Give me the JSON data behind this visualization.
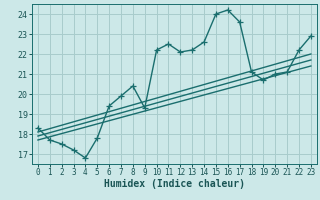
{
  "title": "",
  "xlabel": "Humidex (Indice chaleur)",
  "ylabel": "",
  "bg_color": "#cce8e8",
  "grid_color": "#a8cccc",
  "line_color": "#1a6e6e",
  "xlim": [
    -0.5,
    23.5
  ],
  "ylim": [
    16.5,
    24.5
  ],
  "xticks": [
    0,
    1,
    2,
    3,
    4,
    5,
    6,
    7,
    8,
    9,
    10,
    11,
    12,
    13,
    14,
    15,
    16,
    17,
    18,
    19,
    20,
    21,
    22,
    23
  ],
  "yticks": [
    17,
    18,
    19,
    20,
    21,
    22,
    23,
    24
  ],
  "main_line_x": [
    0,
    1,
    2,
    3,
    4,
    5,
    6,
    7,
    8,
    9,
    10,
    11,
    12,
    13,
    14,
    15,
    16,
    17,
    18,
    19,
    20,
    21,
    22,
    23
  ],
  "main_line_y": [
    18.3,
    17.7,
    17.5,
    17.2,
    16.8,
    17.8,
    19.4,
    19.9,
    20.4,
    19.3,
    22.2,
    22.5,
    22.1,
    22.2,
    22.6,
    24.0,
    24.2,
    23.6,
    21.1,
    20.7,
    21.0,
    21.1,
    22.2,
    22.9
  ],
  "line2_x": [
    0,
    23
  ],
  "line2_y": [
    18.1,
    22.0
  ],
  "line3_x": [
    0,
    23
  ],
  "line3_y": [
    17.7,
    21.4
  ],
  "line4_x": [
    0,
    23
  ],
  "line4_y": [
    17.9,
    21.7
  ],
  "marker_style": "+",
  "marker_size": 4,
  "linewidth": 1.0,
  "tick_fontsize": 5.5,
  "xlabel_fontsize": 7.0
}
